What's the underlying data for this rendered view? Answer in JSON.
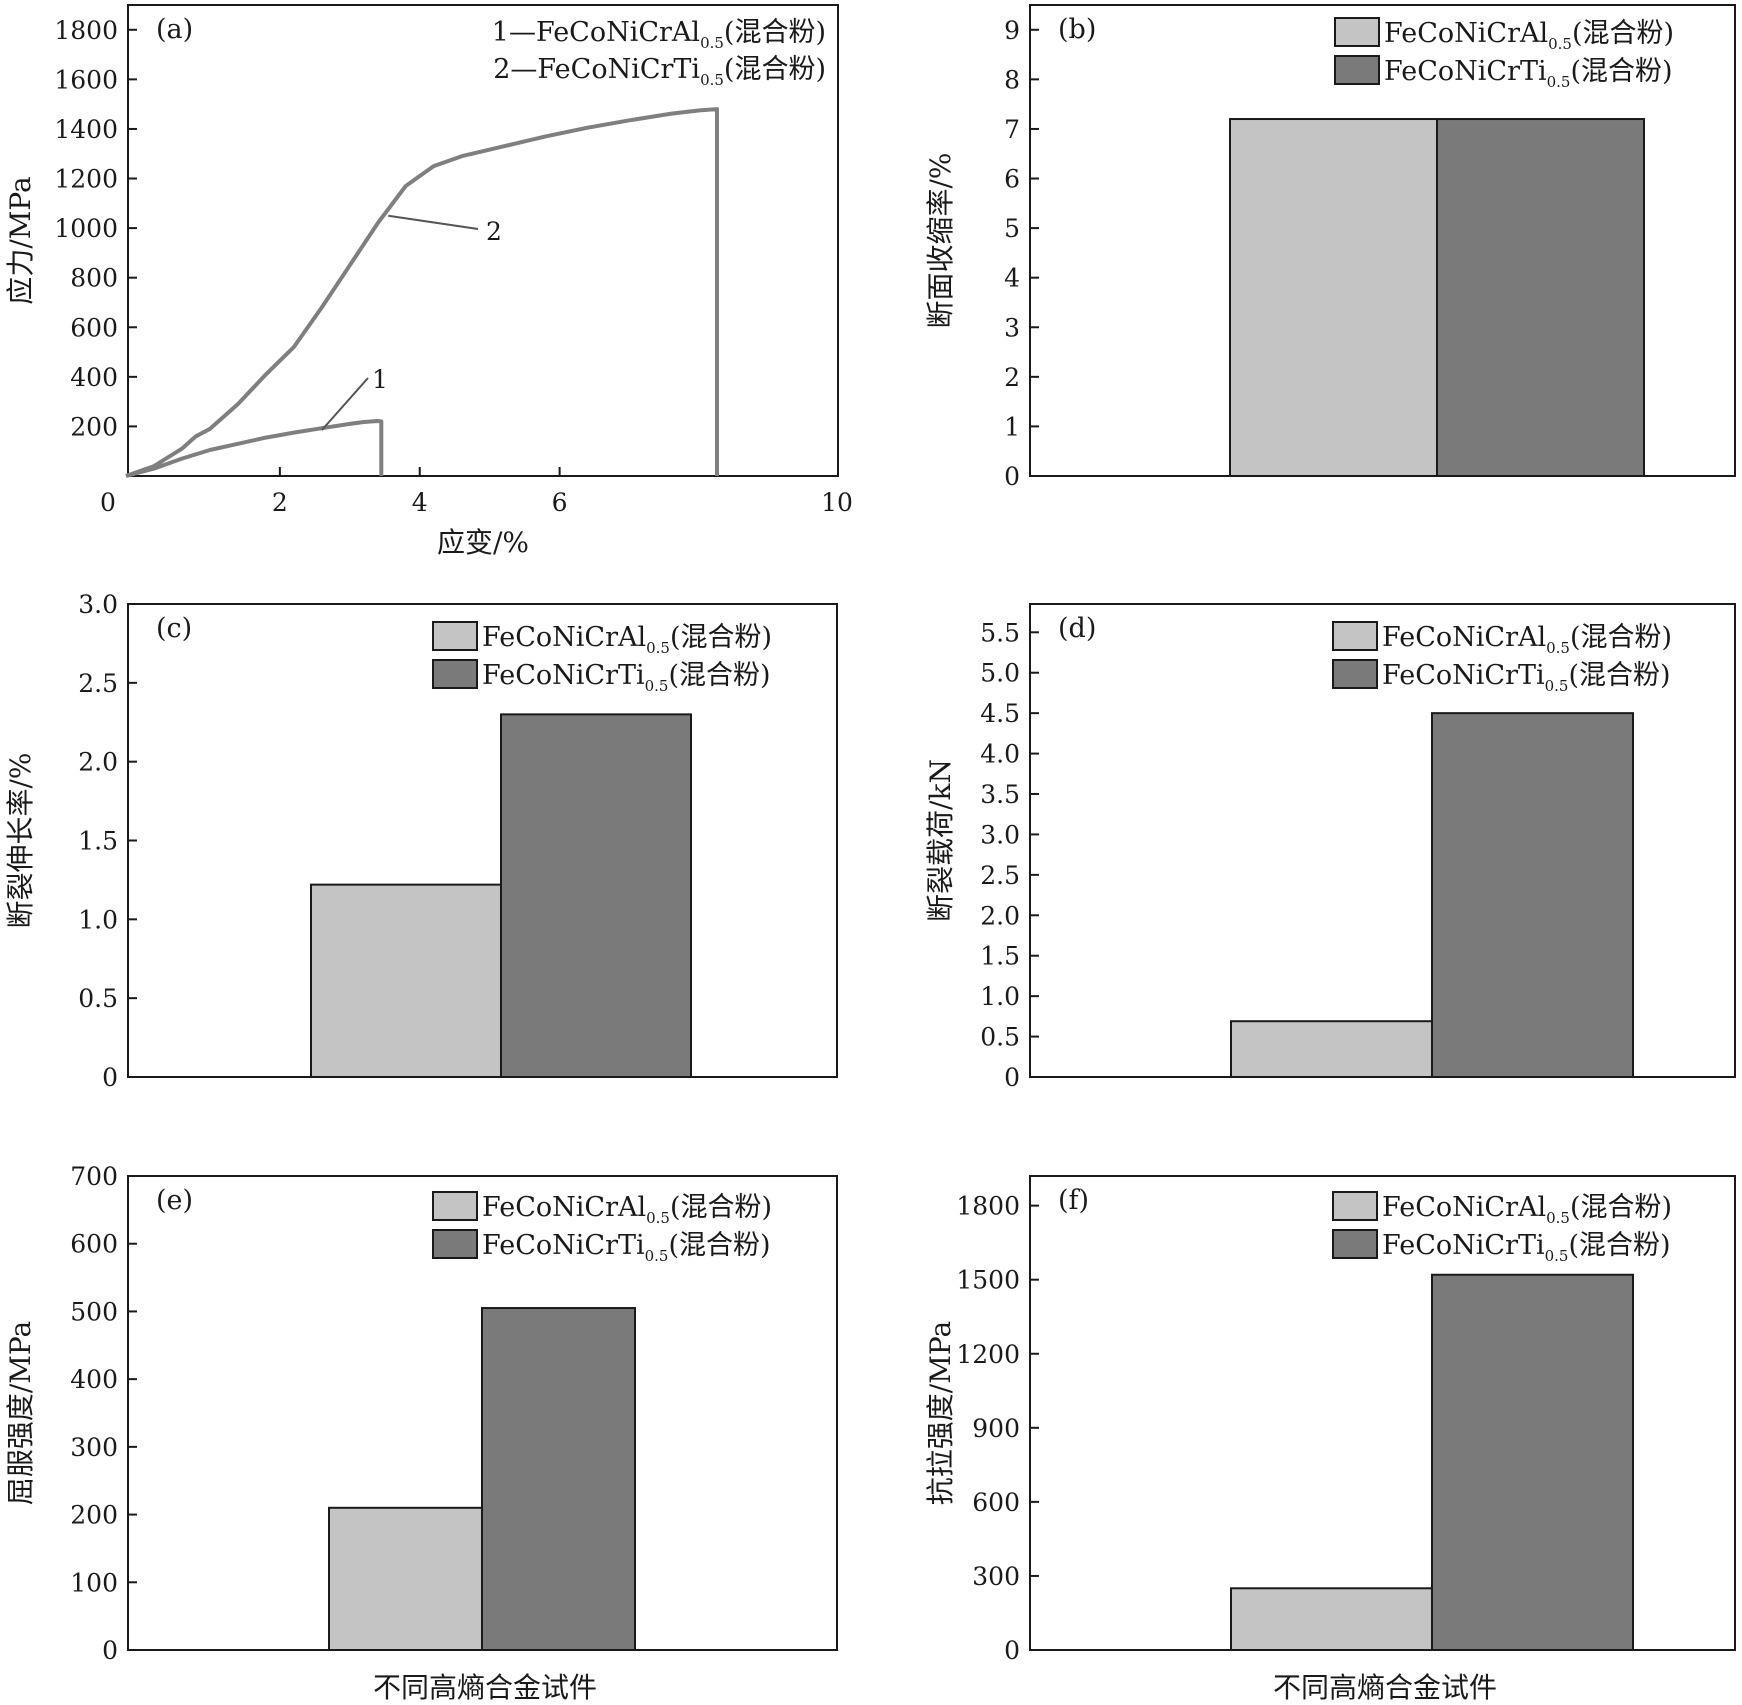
{
  "figure": {
    "shared_xlabel": "不同高熵合金试件",
    "legend_sub": "0.5",
    "legend_suffix": "(混合粉)",
    "colors": {
      "light": "#c4c4c4",
      "dark": "#7a7a7a",
      "curve": "#7f7f7f"
    }
  },
  "chart_data": [
    {
      "panel": "(a)",
      "type": "line",
      "xlabel": "应变/%",
      "ylabel": "应力/MPa",
      "xlim": [
        0,
        10
      ],
      "ylim": [
        0,
        1900
      ],
      "x_ticks": [
        "0",
        "2",
        "4",
        "6",
        "10"
      ],
      "x_tick_values": [
        0,
        2,
        4,
        6,
        10
      ],
      "y_ticks": [
        "200",
        "400",
        "600",
        "800",
        "1000",
        "1200",
        "1400",
        "1600",
        "1800"
      ],
      "y_tick_values": [
        200,
        400,
        600,
        800,
        1000,
        1200,
        1400,
        1600,
        1800
      ],
      "legend": [
        {
          "prefix": "1—FeCoNiCrAl",
          "sub": "0.5",
          "suffix": "(混合粉)"
        },
        {
          "prefix": "2—FeCoNiCrTi",
          "sub": "0.5",
          "suffix": "(混合粉)"
        }
      ],
      "annotations": [
        "1",
        "2"
      ],
      "series": [
        {
          "name": "1",
          "x": [
            0.0,
            0.4,
            0.8,
            1.2,
            1.6,
            2.0,
            2.4,
            2.8,
            3.2,
            3.4,
            3.6,
            3.65,
            3.65
          ],
          "y": [
            0,
            30,
            70,
            105,
            130,
            155,
            175,
            193,
            210,
            218,
            222,
            220,
            0
          ]
        },
        {
          "name": "2",
          "x": [
            0.0,
            0.4,
            0.8,
            1.0,
            1.2,
            1.6,
            2.0,
            2.4,
            2.8,
            3.2,
            3.6,
            4.0,
            4.4,
            4.8,
            5.4,
            6.0,
            6.6,
            7.2,
            7.8,
            8.2,
            8.45,
            8.45
          ],
          "y": [
            0,
            40,
            110,
            160,
            190,
            290,
            410,
            520,
            680,
            850,
            1020,
            1170,
            1250,
            1290,
            1330,
            1370,
            1405,
            1435,
            1462,
            1475,
            1480,
            0
          ]
        }
      ]
    },
    {
      "panel": "(b)",
      "type": "bar",
      "ylabel": "断面收缩率/%",
      "ylim": [
        0,
        9.5
      ],
      "y_ticks": [
        "0",
        "1",
        "2",
        "3",
        "4",
        "5",
        "6",
        "7",
        "8",
        "9"
      ],
      "y_tick_values": [
        0,
        1,
        2,
        3,
        4,
        5,
        6,
        7,
        8,
        9
      ],
      "legend": [
        {
          "prefix": "FeCoNiCrAl",
          "sub": "0.5",
          "suffix": "(混合粉)"
        },
        {
          "prefix": "FeCoNiCrTi",
          "sub": "0.5",
          "suffix": "(混合粉)"
        }
      ],
      "values": [
        7.2,
        7.2
      ]
    },
    {
      "panel": "(c)",
      "type": "bar",
      "ylabel": "断裂伸长率/%",
      "ylim": [
        0,
        3.0
      ],
      "y_ticks": [
        "0",
        "0.5",
        "1.0",
        "1.5",
        "2.0",
        "2.5",
        "3.0"
      ],
      "y_tick_values": [
        0,
        0.5,
        1.0,
        1.5,
        2.0,
        2.5,
        3.0
      ],
      "legend": [
        {
          "prefix": "FeCoNiCrAl",
          "sub": "0.5",
          "suffix": "(混合粉)"
        },
        {
          "prefix": "FeCoNiCrTi",
          "sub": "0.5",
          "suffix": "(混合粉)"
        }
      ],
      "values": [
        1.22,
        2.3
      ]
    },
    {
      "panel": "(d)",
      "type": "bar",
      "ylabel": "断裂载荷/kN",
      "ylim": [
        0,
        5.85
      ],
      "y_ticks": [
        "0",
        "0.5",
        "1.0",
        "1.5",
        "2.0",
        "2.5",
        "3.0",
        "3.5",
        "4.0",
        "4.5",
        "5.0",
        "5.5"
      ],
      "y_tick_values": [
        0,
        0.5,
        1.0,
        1.5,
        2.0,
        2.5,
        3.0,
        3.5,
        4.0,
        4.5,
        5.0,
        5.5
      ],
      "legend": [
        {
          "prefix": "FeCoNiCrAl",
          "sub": "0.5",
          "suffix": "(混合粉)"
        },
        {
          "prefix": "FeCoNiCrTi",
          "sub": "0.5",
          "suffix": "(混合粉)"
        }
      ],
      "values": [
        0.69,
        4.5
      ]
    },
    {
      "panel": "(e)",
      "type": "bar",
      "ylabel": "屈服强度/MPa",
      "ylim": [
        0,
        700
      ],
      "y_ticks": [
        "0",
        "100",
        "200",
        "300",
        "400",
        "500",
        "600",
        "700"
      ],
      "y_tick_values": [
        0,
        100,
        200,
        300,
        400,
        500,
        600,
        700
      ],
      "legend": [
        {
          "prefix": "FeCoNiCrAl",
          "sub": "0.5",
          "suffix": "(混合粉)"
        },
        {
          "prefix": "FeCoNiCrTi",
          "sub": "0.5",
          "suffix": "(混合粉)"
        }
      ],
      "values": [
        210,
        505
      ]
    },
    {
      "panel": "(f)",
      "type": "bar",
      "ylabel": "抗拉强度/MPa",
      "ylim": [
        0,
        1920
      ],
      "y_ticks": [
        "0",
        "300",
        "600",
        "900",
        "1200",
        "1500",
        "1800"
      ],
      "y_tick_values": [
        0,
        300,
        600,
        900,
        1200,
        1500,
        1800
      ],
      "legend": [
        {
          "prefix": "FeCoNiCrAl",
          "sub": "0.5",
          "suffix": "(混合粉)"
        },
        {
          "prefix": "FeCoNiCrTi",
          "sub": "0.5",
          "suffix": "(混合粉)"
        }
      ],
      "values": [
        250,
        1520
      ]
    }
  ]
}
